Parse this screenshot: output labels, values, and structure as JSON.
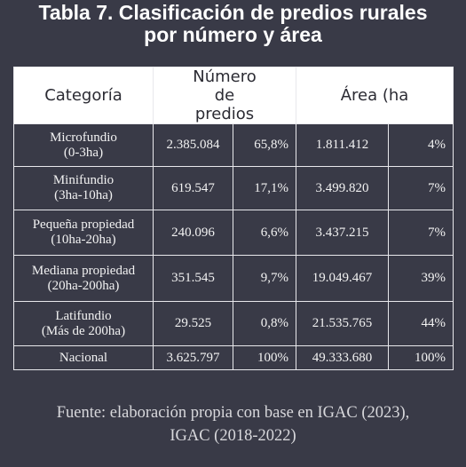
{
  "title": [
    "Tabla 7. Clasificación de predios rurales",
    "por número y área"
  ],
  "table": {
    "header": [
      "Categoría",
      "Número de predios",
      "Área (ha"
    ],
    "rows": [
      {
        "category": [
          "Microfundio",
          "(0-3ha)"
        ],
        "cells": [
          "2.385.084",
          "65,8%",
          "1.811.412",
          "4%"
        ]
      },
      {
        "category": [
          "Minifundio",
          "(3ha-10ha)"
        ],
        "cells": [
          "619.547",
          "17,1%",
          "3.499.820",
          "7%"
        ]
      },
      {
        "category": [
          "Pequeña propiedad",
          "(10ha-20ha)"
        ],
        "cells": [
          "240.096",
          "6,6%",
          "3.437.215",
          "7%"
        ]
      },
      {
        "category": [
          "Mediana propiedad",
          "(20ha-200ha)"
        ],
        "cells": [
          "351.545",
          "9,7%",
          "19.049.467",
          "39%"
        ]
      },
      {
        "category": [
          "Latifundio",
          "(Más de 200ha)"
        ],
        "cells": [
          "29.525",
          "0,8%",
          "21.535.765",
          "44%"
        ]
      },
      {
        "category": [
          "Nacional"
        ],
        "cells": [
          "3.625.797",
          "100%",
          "49.333.680",
          "100%"
        ]
      }
    ]
  },
  "source": [
    "Fuente: elaboración propia con base en IGAC (2023),",
    "IGAC (2018-2022)"
  ]
}
